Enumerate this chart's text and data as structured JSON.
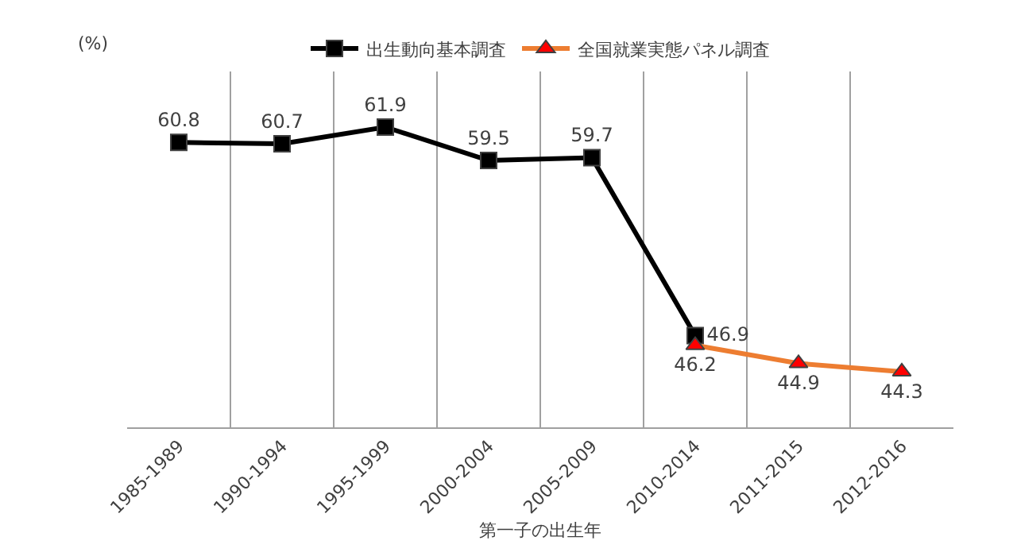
{
  "chart_data": {
    "type": "line",
    "ylabel": "(%)",
    "xlabel": "第一子の出生年",
    "categories": [
      "1985-1989",
      "1990-1994",
      "1995-1999",
      "2000-2004",
      "2005-2009",
      "2010-2014",
      "2011-2015",
      "2012-2016"
    ],
    "series": [
      {
        "name": "出生動向基本調査",
        "color": "#000000",
        "marker": "square",
        "values": [
          60.8,
          60.7,
          61.9,
          59.5,
          59.7,
          46.9,
          null,
          null
        ]
      },
      {
        "name": "全国就業実態パネル調査",
        "color": "#ed7d31",
        "marker": "triangle",
        "colors": [
          "#ff0000",
          "#ff0000",
          "#ff0000",
          "#ff0000",
          "#ff0000",
          "#ff0000",
          "#ff0000",
          "#ff0000"
        ],
        "values": [
          null,
          null,
          null,
          null,
          null,
          46.2,
          44.9,
          44.3
        ]
      }
    ],
    "data_labels": true,
    "grid": "x",
    "legend": "top",
    "line_style": "solid"
  }
}
